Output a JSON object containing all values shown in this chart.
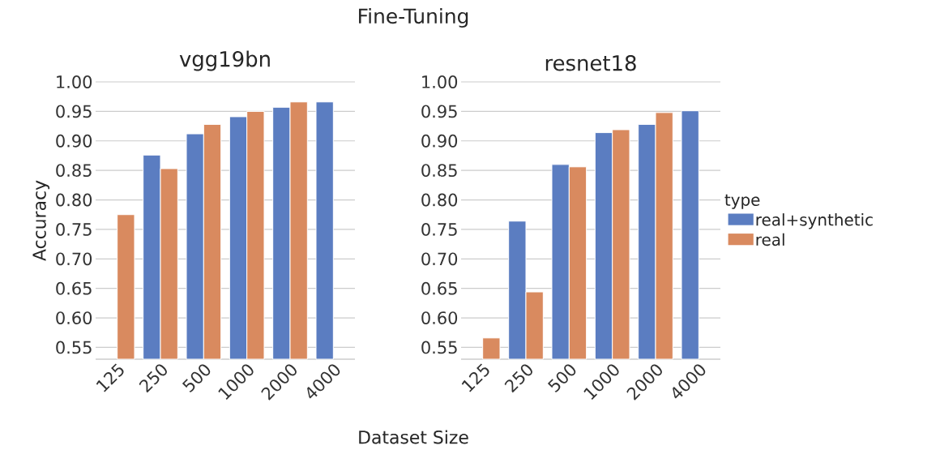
{
  "chart_data": [
    {
      "type": "bar",
      "title": "Fine-Tuning",
      "subtitle": "vgg19bn",
      "xlabel": "Dataset Size",
      "ylabel": "Accuracy",
      "categories": [
        "125",
        "250",
        "500",
        "1000",
        "2000",
        "4000"
      ],
      "series": [
        {
          "color": "#5b7dc1",
          "values": [
            null,
            0.876,
            0.912,
            0.941,
            0.957,
            0.966
          ]
        },
        {
          "color": "#d98a5f",
          "values": [
            0.775,
            0.853,
            0.928,
            0.95,
            0.966,
            null
          ]
        }
      ],
      "ylim": [
        0.53,
        1.0
      ],
      "yticks": [
        {
          "value": 0.55,
          "label": "0.55"
        },
        {
          "value": 0.6,
          "label": "0.60"
        },
        {
          "value": 0.65,
          "label": "0.65"
        },
        {
          "value": 0.7,
          "label": "0.70"
        },
        {
          "value": 0.75,
          "label": "0.75"
        },
        {
          "value": 0.8,
          "label": "0.80"
        },
        {
          "value": 0.85,
          "label": "0.85"
        },
        {
          "value": 0.9,
          "label": "0.90"
        },
        {
          "value": 0.95,
          "label": "0.95"
        },
        {
          "value": 1.0,
          "label": "1.00"
        }
      ],
      "grid": "y",
      "legend": false
    },
    {
      "type": "bar",
      "subtitle": "resnet18",
      "legend_title": "type",
      "categories": [
        "125",
        "250",
        "500",
        "1000",
        "2000",
        "4000"
      ],
      "series": [
        {
          "name": "real+synthetic",
          "color": "#5b7dc1",
          "values": [
            null,
            0.764,
            0.86,
            0.914,
            0.928,
            0.951
          ]
        },
        {
          "name": "real",
          "color": "#d98a5f",
          "values": [
            0.566,
            0.644,
            0.856,
            0.919,
            0.948,
            null
          ]
        }
      ],
      "ylim": [
        0.53,
        1.0
      ],
      "yticks": [
        {
          "value": 0.55,
          "label": "0.55"
        },
        {
          "value": 0.6,
          "label": "0.60"
        },
        {
          "value": 0.65,
          "label": "0.65"
        },
        {
          "value": 0.7,
          "label": "0.70"
        },
        {
          "value": 0.75,
          "label": "0.75"
        },
        {
          "value": 0.8,
          "label": "0.80"
        },
        {
          "value": 0.85,
          "label": "0.85"
        },
        {
          "value": 0.9,
          "label": "0.90"
        },
        {
          "value": 0.95,
          "label": "0.95"
        },
        {
          "value": 1.0,
          "label": "1.00"
        }
      ],
      "grid": "y",
      "legend": "right"
    }
  ]
}
